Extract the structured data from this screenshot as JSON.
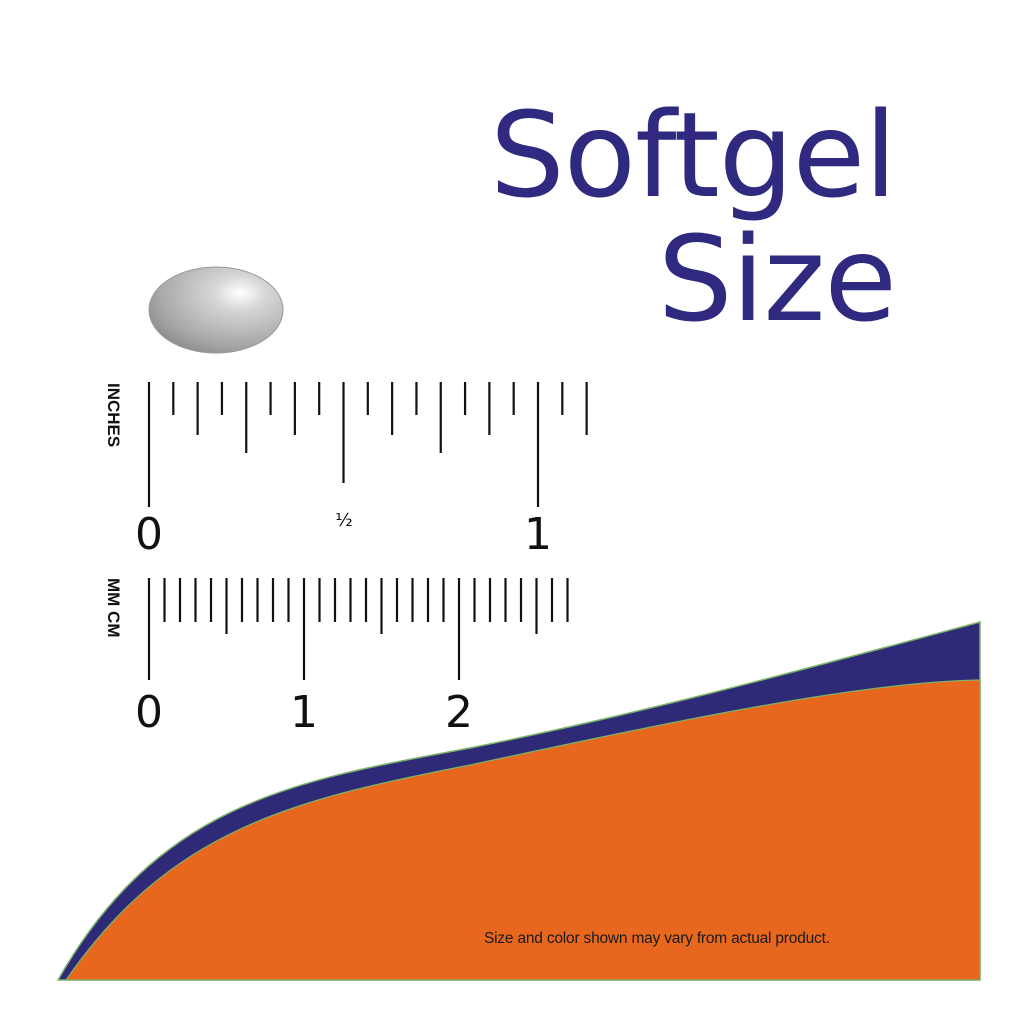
{
  "title": {
    "line1": "Softgel",
    "line2": "Size"
  },
  "inch_ruler": {
    "unit_label": "INCHES",
    "labels": [
      "0",
      "½",
      "1"
    ]
  },
  "metric_ruler": {
    "unit_label": "MM CM",
    "labels": [
      "0",
      "1",
      "2"
    ]
  },
  "disclaimer": "Size and color shown may vary from actual product.",
  "colors": {
    "title": "#2f2a7f",
    "navy_band": "#2e2a78",
    "orange": "#e8671f",
    "edge": "#7db26a",
    "ink": "#111111"
  }
}
